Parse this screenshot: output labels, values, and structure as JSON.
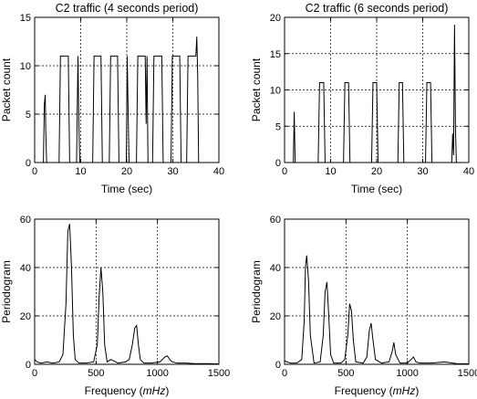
{
  "chart_data": [
    {
      "id": "c2-4s-traffic",
      "type": "line",
      "title": "C2 traffic (4 seconds period)",
      "xlabel": "Time (sec)",
      "ylabel": "Packet count",
      "xlim": [
        0,
        40
      ],
      "ylim": [
        0,
        15
      ],
      "xticks": [
        0,
        10,
        20,
        30,
        40
      ],
      "yticks": [
        0,
        5,
        10,
        15
      ],
      "grid": true,
      "x": [
        0,
        1.9,
        2.1,
        2.3,
        2.4,
        2.6,
        5.3,
        5.6,
        7.3,
        7.6,
        9.1,
        9.4,
        9.6,
        9.8,
        12.6,
        12.9,
        14.4,
        14.7,
        16.2,
        16.5,
        18.0,
        18.3,
        19.9,
        20.1,
        20.3,
        20.5,
        22.1,
        22.4,
        24.0,
        24.2,
        24.4,
        24.6,
        25.6,
        25.9,
        27.6,
        27.9,
        29.6,
        29.9,
        31.5,
        31.8,
        33.0,
        33.3,
        35.0,
        35.2,
        35.4,
        35.6,
        40
      ],
      "y": [
        0,
        0,
        6,
        7,
        3.5,
        0,
        0,
        11,
        11,
        0,
        0,
        11,
        4,
        0,
        0,
        11,
        11,
        0,
        0,
        11,
        11,
        0,
        0,
        11,
        5,
        0,
        0,
        11,
        11,
        4,
        11,
        0,
        0,
        11,
        11,
        0,
        0,
        11,
        11,
        0,
        0,
        11,
        11,
        13,
        9,
        0,
        0
      ]
    },
    {
      "id": "c2-6s-traffic",
      "type": "line",
      "title": "C2 traffic (6 seconds period)",
      "xlabel": "Time (sec)",
      "ylabel": "Packet count",
      "xlim": [
        0,
        40
      ],
      "ylim": [
        0,
        20
      ],
      "xticks": [
        0,
        10,
        20,
        30,
        40
      ],
      "yticks": [
        0,
        5,
        10,
        15,
        20
      ],
      "grid": true,
      "x": [
        0,
        1.9,
        2.1,
        2.3,
        7.3,
        7.6,
        8.5,
        8.8,
        12.8,
        13.1,
        13.9,
        14.2,
        18.9,
        19.2,
        20.0,
        20.3,
        24.6,
        24.9,
        25.3,
        25.6,
        25.9,
        30.6,
        30.9,
        31.7,
        32.0,
        36.3,
        36.5,
        36.7,
        36.9,
        37.1,
        37.3,
        40
      ],
      "y": [
        0,
        0,
        7,
        0,
        0,
        11,
        11,
        0,
        0,
        11,
        11,
        0,
        0,
        11,
        11,
        0,
        0,
        11,
        11,
        11,
        0,
        0,
        11,
        11,
        0,
        0,
        4,
        1,
        19,
        5,
        0,
        0
      ]
    },
    {
      "id": "periodogram-4s",
      "type": "line",
      "title": "",
      "xlabel": "Frequency (mHz)",
      "ylabel": "Periodogram",
      "xlim": [
        0,
        1500
      ],
      "ylim": [
        0,
        60
      ],
      "xticks": [
        0,
        500,
        1000,
        1500
      ],
      "yticks": [
        0,
        20,
        40,
        60
      ],
      "grid": true,
      "x": [
        0,
        20,
        50,
        100,
        150,
        200,
        230,
        255,
        270,
        285,
        300,
        315,
        330,
        360,
        420,
        480,
        510,
        525,
        540,
        555,
        570,
        590,
        620,
        680,
        740,
        770,
        795,
        815,
        830,
        845,
        860,
        890,
        950,
        1020,
        1060,
        1080,
        1100,
        1120,
        1160,
        1230,
        1300,
        1400,
        1500
      ],
      "y": [
        2,
        1,
        0.5,
        1,
        0.5,
        1,
        4,
        25,
        55,
        58,
        40,
        12,
        2,
        0.5,
        0.5,
        1,
        8,
        28,
        40,
        30,
        8,
        1,
        2,
        0.5,
        1,
        2,
        8,
        15,
        16,
        8,
        2,
        0.5,
        0.5,
        1,
        3,
        3.5,
        2,
        1,
        0.5,
        0.5,
        0.3,
        0.3,
        0.2
      ]
    },
    {
      "id": "periodogram-6s",
      "type": "line",
      "title": "",
      "xlabel": "Frequency (mHz)",
      "ylabel": "Periodogram",
      "xlim": [
        0,
        1500
      ],
      "ylim": [
        0,
        60
      ],
      "xticks": [
        0,
        500,
        1000,
        1500
      ],
      "yticks": [
        0,
        20,
        40,
        60
      ],
      "grid": true,
      "x": [
        0,
        20,
        50,
        100,
        140,
        160,
        170,
        180,
        195,
        210,
        240,
        290,
        315,
        330,
        345,
        360,
        375,
        400,
        460,
        490,
        515,
        530,
        545,
        560,
        580,
        640,
        670,
        690,
        705,
        720,
        740,
        790,
        850,
        875,
        890,
        905,
        940,
        1000,
        1030,
        1050,
        1070,
        1100,
        1200,
        1300,
        1400,
        1500
      ],
      "y": [
        1.5,
        1,
        0.5,
        0.5,
        2,
        18,
        40,
        45,
        35,
        12,
        0.5,
        1,
        12,
        30,
        34,
        20,
        4,
        0.5,
        0.5,
        2,
        12,
        25,
        22,
        10,
        1,
        0.5,
        3,
        14,
        17,
        10,
        2,
        0.5,
        1,
        5,
        9,
        4,
        0.5,
        0.5,
        2,
        3,
        1,
        0.5,
        0.5,
        1,
        0.3,
        0.2
      ]
    }
  ]
}
